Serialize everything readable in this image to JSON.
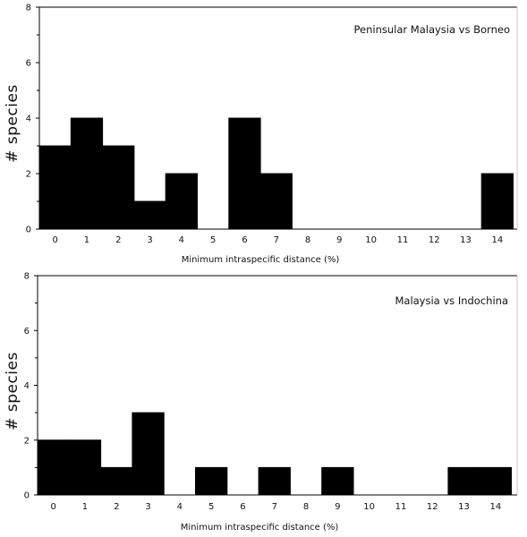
{
  "chart_data": [
    {
      "type": "bar",
      "title": "Peninsular Malaysia vs Borneo",
      "xlabel": "Minimum intraspecific distance (%)",
      "ylabel": "# species",
      "categories": [
        "0",
        "1",
        "2",
        "3",
        "4",
        "5",
        "6",
        "7",
        "8",
        "9",
        "10",
        "11",
        "12",
        "13",
        "14"
      ],
      "values": [
        3,
        4,
        3,
        1,
        2,
        0,
        4,
        2,
        0,
        0,
        0,
        0,
        0,
        0,
        2
      ],
      "yticks": [
        0,
        2,
        4,
        6,
        8
      ],
      "ylim": [
        0,
        8
      ],
      "grid": false
    },
    {
      "type": "bar",
      "title": "Malaysia vs Indochina",
      "xlabel": "Minimum intraspecific distance (%)",
      "ylabel": "# species",
      "categories": [
        "0",
        "1",
        "2",
        "3",
        "4",
        "5",
        "6",
        "7",
        "8",
        "9",
        "10",
        "11",
        "12",
        "13",
        "14"
      ],
      "values": [
        2,
        2,
        1,
        3,
        0,
        1,
        0,
        1,
        0,
        1,
        0,
        0,
        0,
        1,
        1
      ],
      "yticks": [
        0,
        2,
        4,
        6,
        8
      ],
      "ylim": [
        0,
        8
      ],
      "grid": false
    }
  ]
}
